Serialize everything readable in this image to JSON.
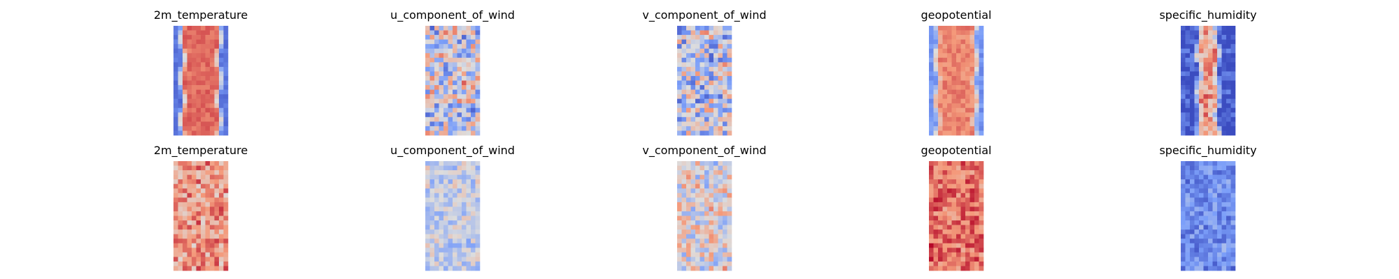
{
  "chart_data": {
    "type": "heatmap",
    "colormap": "coolwarm",
    "axes_visible": false,
    "grid": false,
    "rows": [
      {
        "panels": [
          {
            "title": "2m_temperature",
            "pattern": "band",
            "bias": 0.05,
            "center_value": 0.83,
            "edge_value": 0.12,
            "band_halfwidth": 0.28,
            "noise": 0.1
          },
          {
            "title": "u_component_of_wind",
            "pattern": "noise",
            "mean": 0.45,
            "noise": 0.42
          },
          {
            "title": "v_component_of_wind",
            "pattern": "noise",
            "mean": 0.42,
            "noise": 0.4
          },
          {
            "title": "geopotential",
            "pattern": "band",
            "center_value": 0.78,
            "edge_value": 0.22,
            "band_halfwidth": 0.3,
            "noise": 0.12
          },
          {
            "title": "specific_humidity",
            "pattern": "band",
            "center_value": 0.72,
            "edge_value": 0.02,
            "band_halfwidth": 0.12,
            "noise": 0.35
          }
        ]
      },
      {
        "panels": [
          {
            "title": "2m_temperature",
            "pattern": "noise",
            "mean": 0.72,
            "noise": 0.22
          },
          {
            "title": "u_component_of_wind",
            "pattern": "noise",
            "mean": 0.44,
            "noise": 0.2
          },
          {
            "title": "v_component_of_wind",
            "pattern": "noise",
            "mean": 0.52,
            "noise": 0.3
          },
          {
            "title": "geopotential",
            "pattern": "noise",
            "mean": 0.82,
            "noise": 0.18
          },
          {
            "title": "specific_humidity",
            "pattern": "noise",
            "mean": 0.2,
            "noise": 0.18
          }
        ]
      }
    ]
  }
}
